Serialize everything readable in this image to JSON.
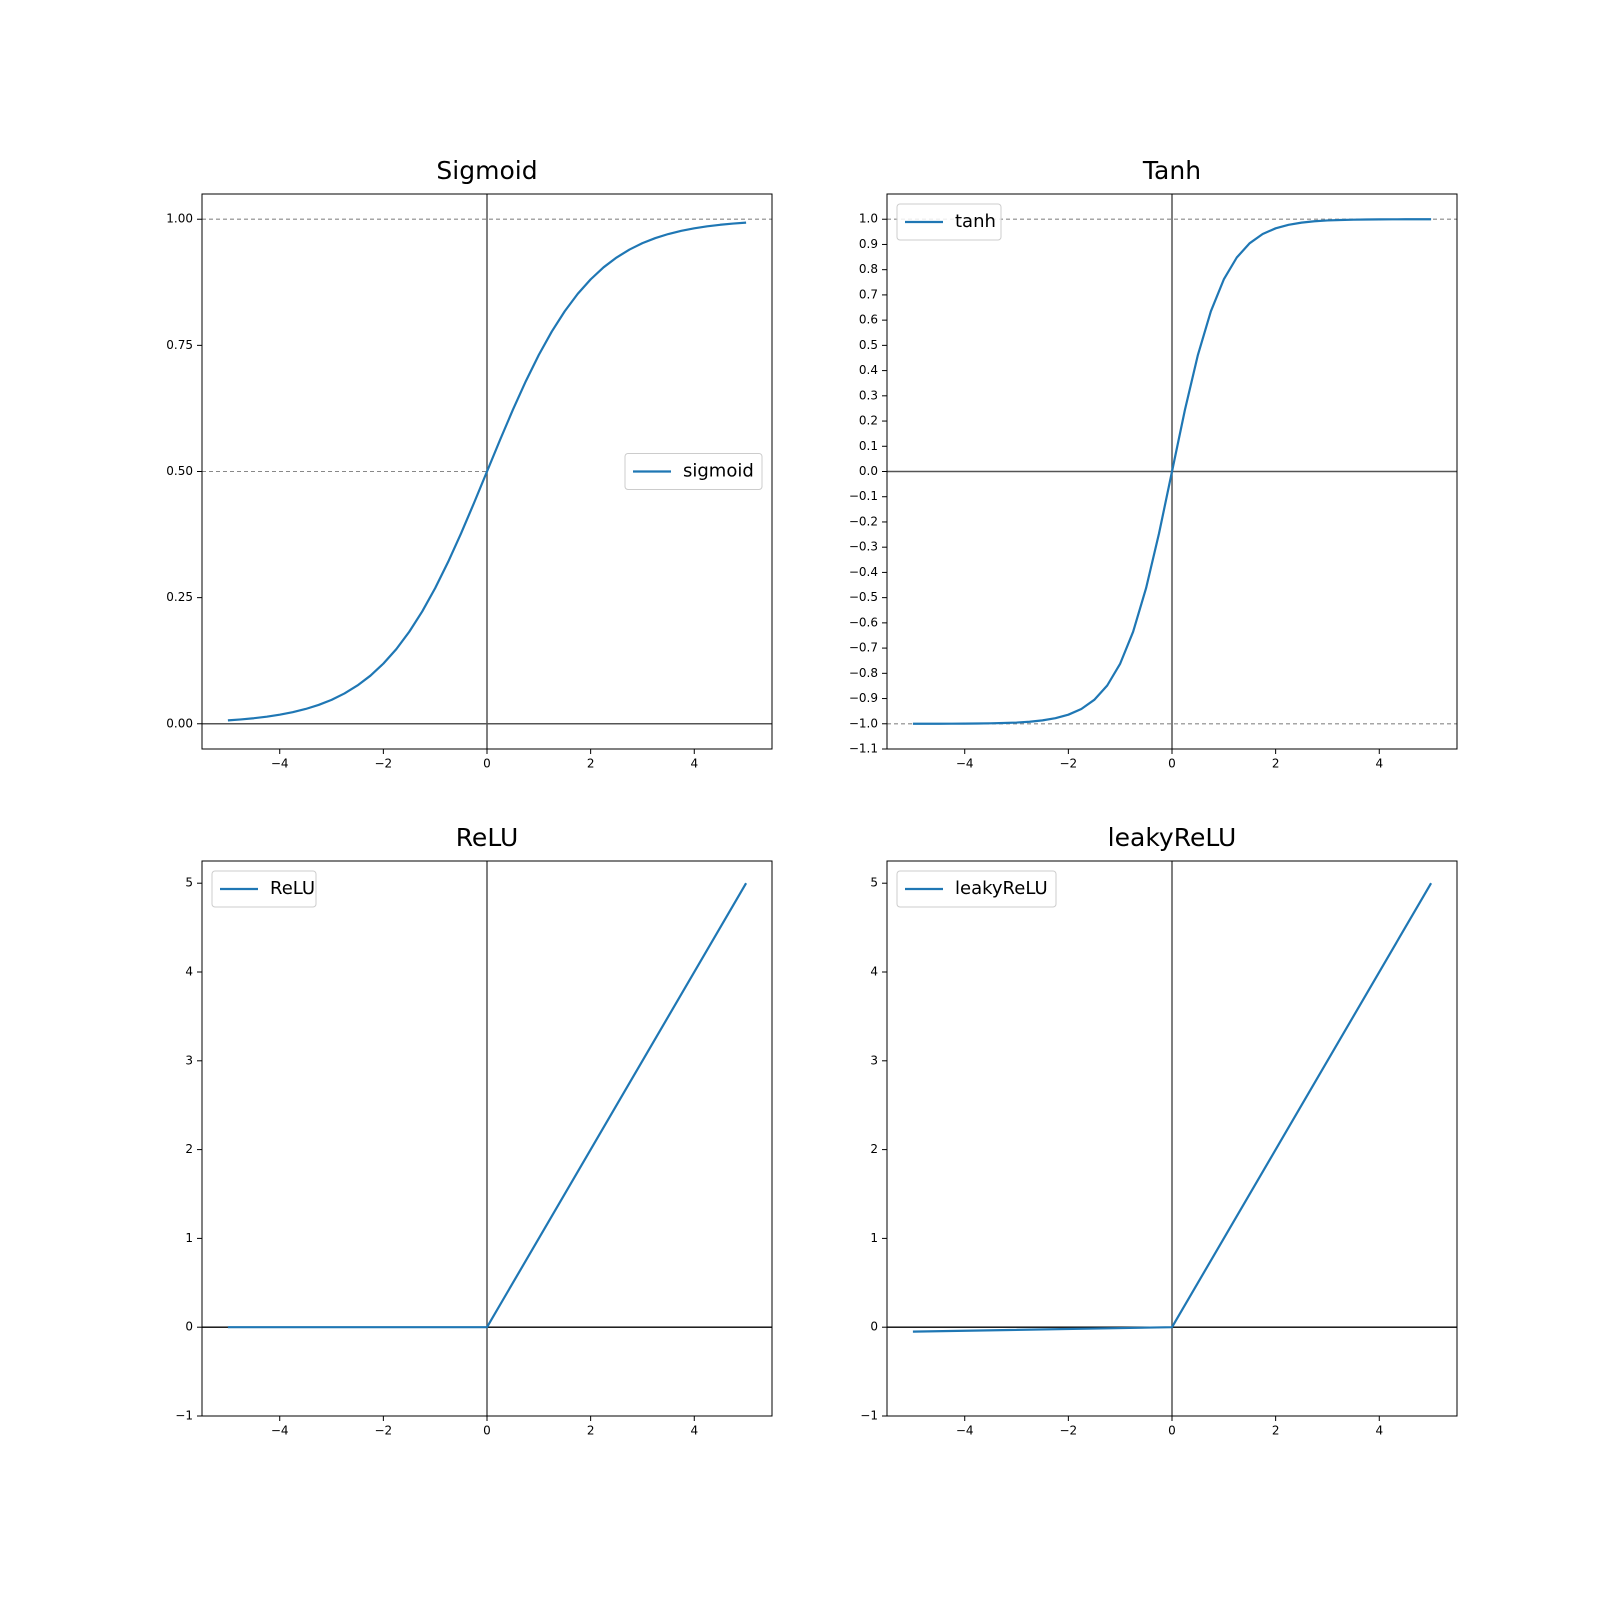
{
  "chart_data": [
    {
      "type": "line",
      "title": "Sigmoid",
      "x": [
        -5,
        -4.75,
        -4.5,
        -4.25,
        -4,
        -3.75,
        -3.5,
        -3.25,
        -3,
        -2.75,
        -2.5,
        -2.25,
        -2,
        -1.75,
        -1.5,
        -1.25,
        -1,
        -0.75,
        -0.5,
        -0.25,
        0,
        0.25,
        0.5,
        0.75,
        1,
        1.25,
        1.5,
        1.75,
        2,
        2.25,
        2.5,
        2.75,
        3,
        3.25,
        3.5,
        3.75,
        4,
        4.25,
        4.5,
        4.75,
        5
      ],
      "series": [
        {
          "name": "sigmoid",
          "color": "#1f77b4",
          "values": [
            0.0067,
            0.0086,
            0.011,
            0.0141,
            0.018,
            0.023,
            0.0293,
            0.0373,
            0.0474,
            0.0601,
            0.0759,
            0.0953,
            0.1192,
            0.148,
            0.1824,
            0.2227,
            0.2689,
            0.3208,
            0.3775,
            0.4378,
            0.5,
            0.5622,
            0.6225,
            0.6792,
            0.7311,
            0.7773,
            0.8176,
            0.852,
            0.8808,
            0.9047,
            0.9241,
            0.9399,
            0.9526,
            0.9627,
            0.9707,
            0.977,
            0.982,
            0.9859,
            0.989,
            0.9914,
            0.9933
          ]
        }
      ],
      "xlim": [
        -5.5,
        5.5
      ],
      "ylim": [
        -0.05,
        1.05
      ],
      "xticks": [
        {
          "value": -4,
          "label": "−4"
        },
        {
          "value": -2,
          "label": "−2"
        },
        0,
        2,
        4
      ],
      "yticks": [
        {
          "value": 0,
          "label": "0.00"
        },
        0.25,
        {
          "value": 0.5,
          "label": "0.50"
        },
        0.75,
        {
          "value": 1,
          "label": "1.00"
        }
      ],
      "hlines": [
        {
          "value": 0,
          "style": "solid"
        },
        {
          "value": 0.5,
          "style": "dashed",
          "xmax": 0
        },
        {
          "value": 1,
          "style": "dashed"
        }
      ],
      "vlines": [
        {
          "value": 0,
          "style": "solid"
        }
      ],
      "legend_loc": "center right"
    },
    {
      "type": "line",
      "title": "Tanh",
      "x": [
        -5,
        -4.75,
        -4.5,
        -4.25,
        -4,
        -3.75,
        -3.5,
        -3.25,
        -3,
        -2.75,
        -2.5,
        -2.25,
        -2,
        -1.75,
        -1.5,
        -1.25,
        -1,
        -0.75,
        -0.5,
        -0.25,
        0,
        0.25,
        0.5,
        0.75,
        1,
        1.25,
        1.5,
        1.75,
        2,
        2.25,
        2.5,
        2.75,
        3,
        3.25,
        3.5,
        3.75,
        4,
        4.25,
        4.5,
        4.75,
        5
      ],
      "series": [
        {
          "name": "tanh",
          "color": "#1f77b4",
          "values": [
            -0.9999,
            -0.9999,
            -0.9998,
            -0.9996,
            -0.9993,
            -0.9989,
            -0.9982,
            -0.997,
            -0.9951,
            -0.9919,
            -0.9866,
            -0.978,
            -0.964,
            -0.9414,
            -0.9051,
            -0.8483,
            -0.7616,
            -0.6351,
            -0.4621,
            -0.2449,
            0,
            0.2449,
            0.4621,
            0.6351,
            0.7616,
            0.8483,
            0.9051,
            0.9414,
            0.964,
            0.978,
            0.9866,
            0.9919,
            0.9951,
            0.997,
            0.9982,
            0.9989,
            0.9993,
            0.9996,
            0.9998,
            0.9999,
            0.9999
          ]
        }
      ],
      "xlim": [
        -5.5,
        5.5
      ],
      "ylim": [
        -1.1,
        1.1
      ],
      "xticks": [
        {
          "value": -4,
          "label": "−4"
        },
        {
          "value": -2,
          "label": "−2"
        },
        0,
        2,
        4
      ],
      "yticks": [
        {
          "value": -1.1,
          "label": "−1.1"
        },
        {
          "value": -1,
          "label": "−1.0"
        },
        {
          "value": -0.9,
          "label": "−0.9"
        },
        {
          "value": -0.8,
          "label": "−0.8"
        },
        {
          "value": -0.7,
          "label": "−0.7"
        },
        {
          "value": -0.6,
          "label": "−0.6"
        },
        {
          "value": -0.5,
          "label": "−0.5"
        },
        {
          "value": -0.4,
          "label": "−0.4"
        },
        {
          "value": -0.3,
          "label": "−0.3"
        },
        {
          "value": -0.2,
          "label": "−0.2"
        },
        {
          "value": -0.1,
          "label": "−0.1"
        },
        {
          "value": 0,
          "label": "0.0"
        },
        0.1,
        0.2,
        0.3,
        0.4,
        0.5,
        0.6,
        0.7,
        0.8,
        0.9,
        {
          "value": 1,
          "label": "1.0"
        }
      ],
      "hlines": [
        {
          "value": 0,
          "style": "solid"
        },
        {
          "value": -1,
          "style": "dashed"
        },
        {
          "value": 1,
          "style": "dashed"
        }
      ],
      "vlines": [
        {
          "value": 0,
          "style": "solid"
        }
      ],
      "legend_loc": "upper left"
    },
    {
      "type": "line",
      "title": "ReLU",
      "x": [
        -5,
        0,
        5
      ],
      "series": [
        {
          "name": "ReLU",
          "color": "#1f77b4",
          "values": [
            0,
            0,
            5
          ]
        }
      ],
      "xlim": [
        -5.5,
        5.5
      ],
      "ylim": [
        -1,
        5.25
      ],
      "xticks": [
        {
          "value": -4,
          "label": "−4"
        },
        {
          "value": -2,
          "label": "−2"
        },
        0,
        2,
        4
      ],
      "yticks": [
        {
          "value": -1,
          "label": "−1"
        },
        0,
        1,
        2,
        3,
        4,
        5
      ],
      "hlines": [
        {
          "value": 0,
          "style": "black"
        }
      ],
      "vlines": [
        {
          "value": 0,
          "style": "solid"
        }
      ],
      "legend_loc": "upper left"
    },
    {
      "type": "line",
      "title": "leakyReLU",
      "x": [
        -5,
        0,
        5
      ],
      "series": [
        {
          "name": "leakyReLU",
          "color": "#1f77b4",
          "values": [
            -0.05,
            0,
            5
          ]
        }
      ],
      "xlim": [
        -5.5,
        5.5
      ],
      "ylim": [
        -1,
        5.25
      ],
      "xticks": [
        {
          "value": -4,
          "label": "−4"
        },
        {
          "value": -2,
          "label": "−2"
        },
        0,
        2,
        4
      ],
      "yticks": [
        {
          "value": -1,
          "label": "−1"
        },
        0,
        1,
        2,
        3,
        4,
        5
      ],
      "hlines": [
        {
          "value": 0,
          "style": "black"
        }
      ],
      "vlines": [
        {
          "value": 0,
          "style": "solid"
        }
      ],
      "legend_loc": "upper left"
    }
  ]
}
